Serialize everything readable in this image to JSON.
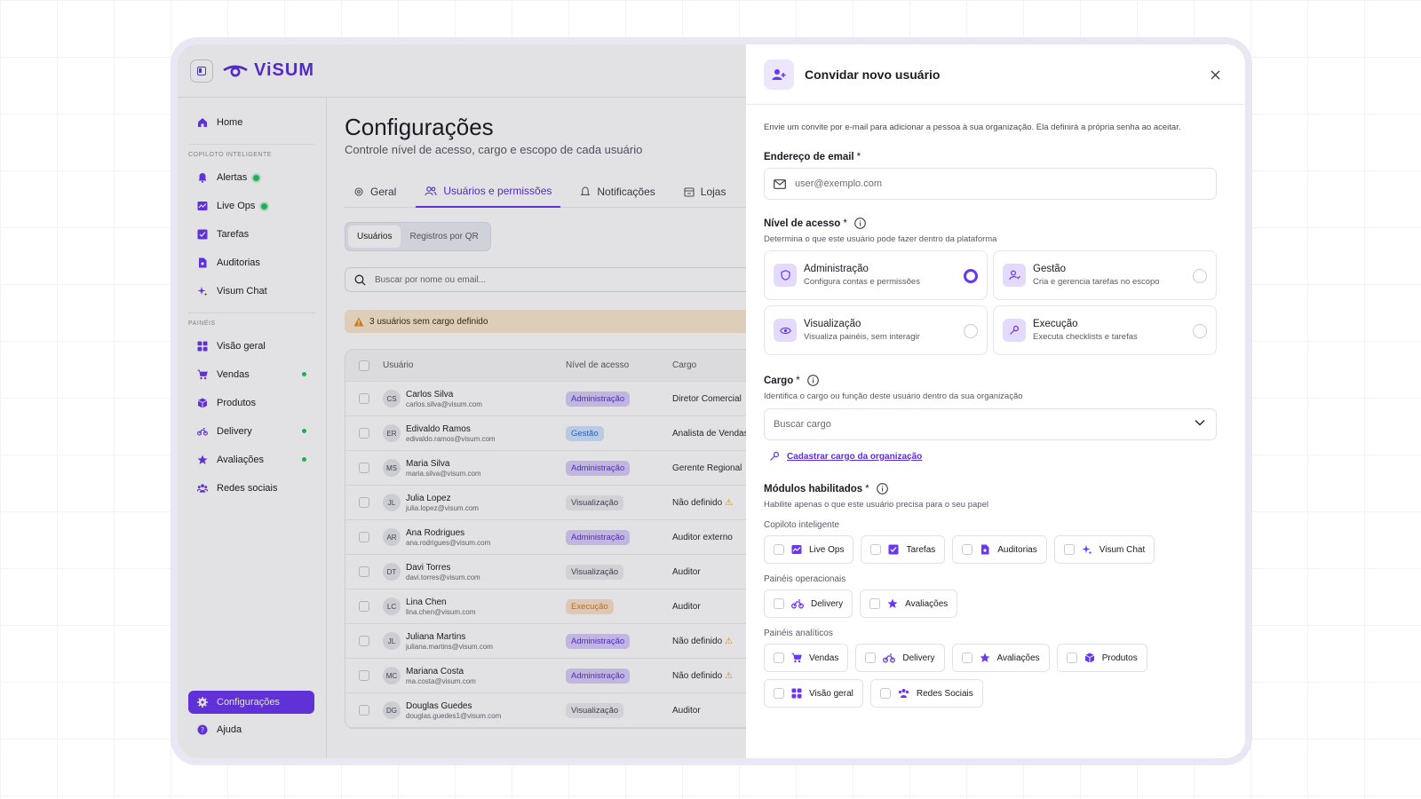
{
  "brand": {
    "name": "ViSUM"
  },
  "sidebar": {
    "home": "Home",
    "section_copiloto": "COPILOTO INTELIGENTE",
    "copiloto_items": [
      {
        "label": "Alertas",
        "icon": "bell-icon"
      },
      {
        "label": "Live Ops",
        "icon": "live-ops-icon"
      },
      {
        "label": "Tarefas",
        "icon": "tasks-icon"
      },
      {
        "label": "Auditorias",
        "icon": "audit-icon"
      },
      {
        "label": "Visum Chat",
        "icon": "sparkle-icon"
      }
    ],
    "section_paineis": "PAINÉIS",
    "painel_items": [
      {
        "label": "Visão geral",
        "icon": "grid-icon"
      },
      {
        "label": "Vendas",
        "icon": "cart-icon"
      },
      {
        "label": "Produtos",
        "icon": "box-icon"
      },
      {
        "label": "Delivery",
        "icon": "motorbike-icon"
      },
      {
        "label": "Avaliações",
        "icon": "star-icon"
      },
      {
        "label": "Redes sociais",
        "icon": "people-icon"
      }
    ],
    "settings": "Configurações",
    "help": "Ajuda"
  },
  "main": {
    "title": "Configurações",
    "subtitle": "Controle nível de acesso, cargo e escopo de cada usuário",
    "tabs": [
      {
        "label": "Geral"
      },
      {
        "label": "Usuários e permissões"
      },
      {
        "label": "Notificações"
      },
      {
        "label": "Lojas"
      }
    ],
    "segments": [
      "Usuários",
      "Registros por QR"
    ],
    "search_placeholder": "Buscar por nome ou email...",
    "warning": "3 usuários sem cargo definido",
    "table": {
      "headers": [
        "Usuário",
        "Nível de acesso",
        "Cargo"
      ],
      "rows": [
        {
          "initials": "CS",
          "name": "Carlos Silva",
          "email": "carlos.silva@visum.com",
          "level": "Administração",
          "role": "Diretor Comercial"
        },
        {
          "initials": "ER",
          "name": "Edivaldo Ramos",
          "email": "edivaldo.ramos@visum.com",
          "level": "Gestão",
          "role": "Analista de Vendas"
        },
        {
          "initials": "MS",
          "name": "Maria Silva",
          "email": "maria.silva@visum.com",
          "level": "Administração",
          "role": "Gerente Regional"
        },
        {
          "initials": "JL",
          "name": "Julia Lopez",
          "email": "julia.lopez@visum.com",
          "level": "Visualização",
          "role": "Não definido"
        },
        {
          "initials": "AR",
          "name": "Ana Rodrigues",
          "email": "ana.rodrigues@visum.com",
          "level": "Administração",
          "role": "Auditor externo"
        },
        {
          "initials": "DT",
          "name": "Davi Torres",
          "email": "davi.torres@visum.com",
          "level": "Visualização",
          "role": "Auditor"
        },
        {
          "initials": "LC",
          "name": "Lina Chen",
          "email": "lina.chen@visum.com",
          "level": "Execução",
          "role": "Auditor"
        },
        {
          "initials": "JL",
          "name": "Juliana Martins",
          "email": "juliana.martins@visum.com",
          "level": "Administração",
          "role": "Não definido"
        },
        {
          "initials": "MC",
          "name": "Mariana Costa",
          "email": "ma.costa@visum.com",
          "level": "Administração",
          "role": "Não definido"
        },
        {
          "initials": "DG",
          "name": "Douglas Guedes",
          "email": "douglas.guedes1@visum.com",
          "level": "Visualização",
          "role": "Auditor"
        }
      ]
    }
  },
  "drawer": {
    "title": "Convidar novo usuário",
    "intro": "Envie um convite por e-mail para adicionar a pessoa à sua organização. Ela definirá a própria senha ao aceitar.",
    "email_label": "Endereço de email",
    "email_placeholder": "user@exemplo.com",
    "level_label": "Nível de acesso",
    "level_hint": "Determina o que este usuário pode fazer dentro da plataforma",
    "levels": [
      {
        "name": "Administração",
        "desc": "Configura contas e permissões",
        "selected": true
      },
      {
        "name": "Gestão",
        "desc": "Cria e gerencia tarefas no escopo",
        "selected": false
      },
      {
        "name": "Visualização",
        "desc": "Visualiza painéis, sem interagir",
        "selected": false
      },
      {
        "name": "Execução",
        "desc": "Executa checklists e tarefas",
        "selected": false
      }
    ],
    "role_label": "Cargo",
    "role_hint": "Identifica o cargo ou função deste usuário dentro da sua organização",
    "role_placeholder": "Buscar cargo",
    "role_link": "Cadastrar cargo da organização",
    "modules_label": "Módulos habilitados",
    "modules_hint": "Habilite apenas o que este usuário precisa para o seu papel",
    "groups": [
      {
        "label": "Copiloto inteligente",
        "items": [
          "Live Ops",
          "Tarefas",
          "Auditorias",
          "Visum Chat"
        ]
      },
      {
        "label": "Painéis operacionais",
        "items": [
          "Delivery",
          "Avaliações"
        ]
      },
      {
        "label": "Painéis analíticos",
        "items": [
          "Vendas",
          "Delivery",
          "Avaliações",
          "Produtos",
          "Visão geral",
          "Redes Sociais"
        ]
      }
    ]
  },
  "colors": {
    "accent": "#6a36f0",
    "status_green": "#22c55e",
    "warning_bg": "#fbe9cf"
  }
}
